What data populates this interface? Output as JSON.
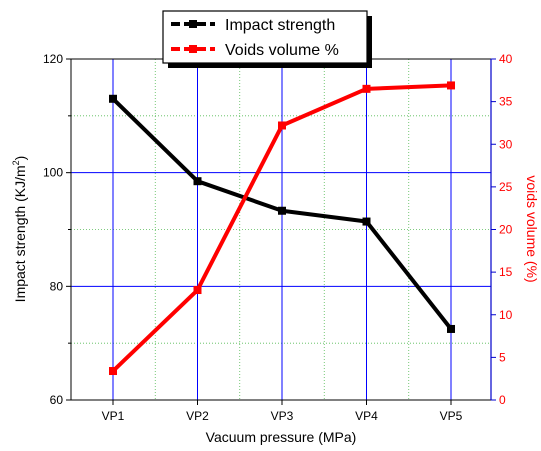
{
  "chart_data": {
    "type": "line",
    "categories": [
      "VP1",
      "VP2",
      "VP3",
      "VP4",
      "VP5"
    ],
    "xlabel": "Vacuum pressure (MPa)",
    "ylabel_left": "Impact strength (KJ/m",
    "ylabel_left_sup": "2",
    "ylabel_left_tail": ")",
    "ylabel_right": "voids volume (%)",
    "ylim_left": [
      60,
      120
    ],
    "yticks_left": [
      60,
      80,
      100,
      120
    ],
    "ylim_right": [
      0,
      40
    ],
    "yticks_right": [
      0,
      5,
      10,
      15,
      20,
      25,
      30,
      35,
      40
    ],
    "grid": true,
    "legend_position": "top-center",
    "series": [
      {
        "name": "Impact strength",
        "axis": "left",
        "color": "#000000",
        "values": [
          113,
          98.5,
          93.3,
          91.4,
          72.5
        ]
      },
      {
        "name": "Voids volume %",
        "axis": "right",
        "color": "#ff0000",
        "values": [
          3.4,
          12.9,
          32.2,
          36.5,
          36.9
        ]
      }
    ],
    "colors": {
      "axis_right": "#0000cc",
      "grid_major": "#0000ff",
      "grid_minor": "#55bb55",
      "label_right": "#ff0000"
    }
  }
}
